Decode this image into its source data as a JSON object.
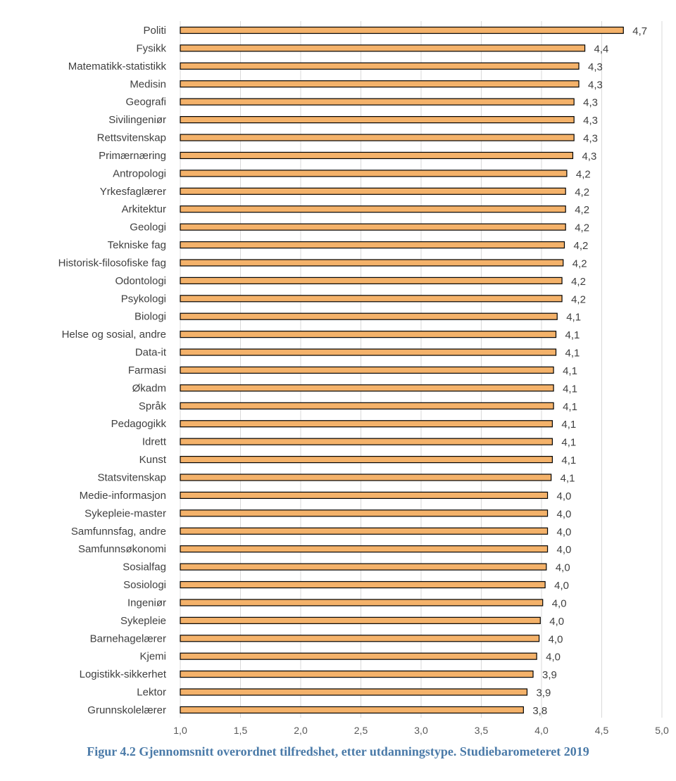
{
  "chart_data": {
    "type": "bar",
    "orientation": "horizontal",
    "title": "",
    "xlabel": "",
    "ylabel": "",
    "xlim": [
      1.0,
      5.0
    ],
    "xticks": [
      "1,0",
      "1,5",
      "2,0",
      "2,5",
      "3,0",
      "3,5",
      "4,0",
      "4,5",
      "5,0"
    ],
    "grid": true,
    "bar_color": "#f4b26a",
    "bar_edge_color": "#000000",
    "categories": [
      "Politi",
      "Fysikk",
      "Matematikk-statistikk",
      "Medisin",
      "Geografi",
      "Sivilingeniør",
      "Rettsvitenskap",
      "Primærnæring",
      "Antropologi",
      "Yrkesfaglærer",
      "Arkitektur",
      "Geologi",
      "Tekniske fag",
      "Historisk-filosofiske fag",
      "Odontologi",
      "Psykologi",
      "Biologi",
      "Helse og sosial, andre",
      "Data-it",
      "Farmasi",
      "Økadm",
      "Språk",
      "Pedagogikk",
      "Idrett",
      "Kunst",
      "Statsvitenskap",
      "Medie-informasjon",
      "Sykepleie-master",
      "Samfunnsfag, andre",
      "Samfunnsøkonomi",
      "Sosialfag",
      "Sosiologi",
      "Ingeniør",
      "Sykepleie",
      "Barnehagelærer",
      "Kjemi",
      "Logistikk-sikkerhet",
      "Lektor",
      "Grunnskolelærer"
    ],
    "values": [
      4.68,
      4.36,
      4.31,
      4.31,
      4.27,
      4.27,
      4.27,
      4.26,
      4.21,
      4.2,
      4.2,
      4.2,
      4.19,
      4.18,
      4.17,
      4.17,
      4.13,
      4.12,
      4.12,
      4.1,
      4.1,
      4.1,
      4.09,
      4.09,
      4.09,
      4.08,
      4.05,
      4.05,
      4.05,
      4.05,
      4.04,
      4.03,
      4.01,
      3.99,
      3.98,
      3.96,
      3.93,
      3.88,
      3.85
    ],
    "value_labels": [
      "4,7",
      "4,4",
      "4,3",
      "4,3",
      "4,3",
      "4,3",
      "4,3",
      "4,3",
      "4,2",
      "4,2",
      "4,2",
      "4,2",
      "4,2",
      "4,2",
      "4,2",
      "4,2",
      "4,1",
      "4,1",
      "4,1",
      "4,1",
      "4,1",
      "4,1",
      "4,1",
      "4,1",
      "4,1",
      "4,1",
      "4,0",
      "4,0",
      "4,0",
      "4,0",
      "4,0",
      "4,0",
      "4,0",
      "4,0",
      "4,0",
      "4,0",
      "3,9",
      "3,9",
      "3,8"
    ]
  },
  "caption": "Figur 4.2 Gjennomsnitt overordnet tilfredshet, etter utdanningstype. Studiebarometeret 2019"
}
